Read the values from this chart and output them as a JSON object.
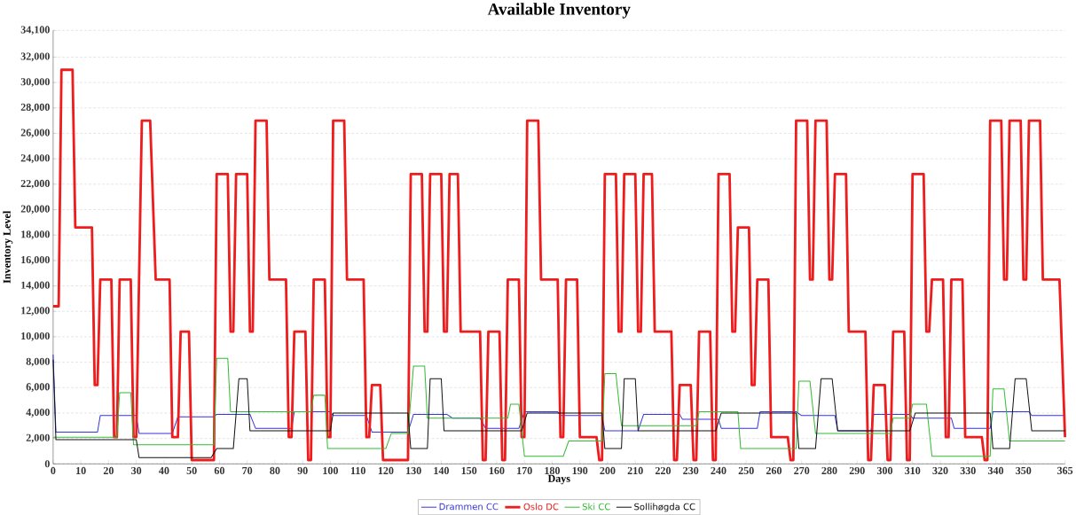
{
  "chart_data": {
    "type": "line",
    "title": "Available Inventory",
    "xlabel": "Days",
    "ylabel": "Inventory Level",
    "xlim": [
      0,
      365
    ],
    "xticks": [
      0,
      10,
      20,
      30,
      40,
      50,
      60,
      70,
      80,
      90,
      100,
      110,
      120,
      130,
      140,
      150,
      160,
      170,
      180,
      190,
      200,
      210,
      220,
      230,
      240,
      250,
      260,
      270,
      280,
      290,
      300,
      310,
      320,
      330,
      340,
      350,
      365
    ],
    "ylim": [
      0,
      34100
    ],
    "yticks": [
      0,
      {
        "value": 2000,
        "label": "2,000"
      },
      {
        "value": 4000,
        "label": "4,000"
      },
      {
        "value": 6000,
        "label": "6,000"
      },
      {
        "value": 8000,
        "label": "8,000"
      },
      {
        "value": 10000,
        "label": "10,000"
      },
      {
        "value": 12000,
        "label": "12,000"
      },
      {
        "value": 14000,
        "label": "14,000"
      },
      {
        "value": 16000,
        "label": "16,000"
      },
      {
        "value": 18000,
        "label": "18,000"
      },
      {
        "value": 20000,
        "label": "20,000"
      },
      {
        "value": 22000,
        "label": "22,000"
      },
      {
        "value": 24000,
        "label": "24,000"
      },
      {
        "value": 26000,
        "label": "26,000"
      },
      {
        "value": 28000,
        "label": "28,000"
      },
      {
        "value": 30000,
        "label": "30,000"
      },
      {
        "value": 32000,
        "label": "32,000"
      },
      {
        "value": 34100,
        "label": "34,100"
      }
    ],
    "grid": "y",
    "legend": "bottom",
    "series": [
      {
        "name": "Drammen CC",
        "color": "#3535dd",
        "x": [
          0,
          1,
          16,
          17,
          30,
          31,
          43,
          45,
          58,
          59,
          71,
          73,
          86,
          87,
          100,
          101,
          113,
          115,
          128,
          130,
          142,
          144,
          154,
          156,
          168,
          170,
          182,
          183,
          198,
          199,
          211,
          213,
          226,
          227,
          240,
          241,
          254,
          255,
          268,
          270,
          282,
          283,
          295,
          296,
          309,
          310,
          324,
          325,
          338,
          339,
          352,
          353,
          365
        ],
        "values": [
          8600,
          2500,
          2500,
          3800,
          3800,
          2400,
          2400,
          3700,
          3700,
          3900,
          3900,
          2800,
          2800,
          4100,
          4100,
          3800,
          3800,
          2500,
          2500,
          3900,
          3900,
          3600,
          3600,
          2800,
          2800,
          4100,
          4100,
          3800,
          3800,
          2600,
          2600,
          3900,
          3900,
          3500,
          3500,
          2800,
          2800,
          4100,
          4100,
          3800,
          3800,
          2600,
          2600,
          3900,
          3900,
          3600,
          3600,
          2800,
          2800,
          4100,
          4100,
          3800,
          3800
        ]
      },
      {
        "name": "Oslo DC",
        "color": "#ee1c1c",
        "x": [
          0,
          2,
          3,
          7,
          8,
          14,
          15,
          16,
          17,
          21,
          22,
          23,
          24,
          28,
          29,
          30,
          32,
          35,
          37,
          42,
          43,
          45,
          46,
          49,
          50,
          58,
          59,
          63,
          64,
          65,
          66,
          70,
          71,
          72,
          73,
          77,
          78,
          84,
          85,
          86,
          87,
          91,
          92,
          93,
          94,
          98,
          99,
          100,
          101,
          105,
          106,
          112,
          113,
          114,
          115,
          118,
          119,
          128,
          129,
          133,
          134,
          135,
          136,
          140,
          141,
          142,
          143,
          146,
          147,
          154,
          155,
          156,
          157,
          161,
          162,
          163,
          164,
          168,
          169,
          170,
          171,
          175,
          176,
          182,
          183,
          184,
          185,
          189,
          190,
          196,
          197,
          198,
          199,
          203,
          204,
          205,
          206,
          210,
          211,
          212,
          213,
          216,
          217,
          223,
          224,
          225,
          226,
          230,
          231,
          232,
          233,
          237,
          238,
          239,
          240,
          244,
          245,
          246,
          247,
          251,
          252,
          253,
          254,
          258,
          259,
          265,
          266,
          267,
          268,
          272,
          273,
          274,
          275,
          279,
          280,
          281,
          282,
          286,
          287,
          293,
          294,
          295,
          296,
          300,
          301,
          302,
          303,
          307,
          308,
          309,
          310,
          314,
          315,
          316,
          317,
          321,
          322,
          323,
          324,
          328,
          329,
          335,
          336,
          337,
          338,
          342,
          343,
          344,
          345,
          349,
          350,
          351,
          352,
          356,
          357,
          363,
          365
        ],
        "values": [
          12400,
          12400,
          31000,
          31000,
          18600,
          18600,
          6200,
          6200,
          14500,
          14500,
          2100,
          2100,
          14500,
          14500,
          2100,
          2100,
          27000,
          27000,
          14500,
          14500,
          2100,
          2100,
          10400,
          10400,
          300,
          300,
          22800,
          22800,
          10400,
          10400,
          22800,
          22800,
          10400,
          10400,
          27000,
          27000,
          14500,
          14500,
          2100,
          2100,
          10400,
          10400,
          300,
          300,
          14500,
          14500,
          2100,
          2100,
          27000,
          27000,
          14500,
          14500,
          2100,
          2100,
          6200,
          6200,
          300,
          300,
          22800,
          22800,
          10400,
          10400,
          22800,
          22800,
          10400,
          10400,
          22800,
          22800,
          10400,
          10400,
          300,
          300,
          10400,
          10400,
          300,
          300,
          14500,
          14500,
          2100,
          2100,
          27000,
          27000,
          14500,
          14500,
          2100,
          2100,
          14500,
          14500,
          2100,
          2100,
          300,
          300,
          22800,
          22800,
          10400,
          10400,
          22800,
          22800,
          10400,
          10400,
          22800,
          22800,
          10400,
          10400,
          300,
          300,
          6200,
          6200,
          300,
          300,
          10400,
          10400,
          300,
          300,
          22800,
          22800,
          10400,
          10400,
          18600,
          18600,
          6200,
          6200,
          14500,
          14500,
          2100,
          2100,
          300,
          300,
          27000,
          27000,
          14500,
          14500,
          27000,
          27000,
          14500,
          14500,
          22800,
          22800,
          10400,
          10400,
          300,
          300,
          6200,
          6200,
          300,
          300,
          10400,
          10400,
          300,
          300,
          22800,
          22800,
          10400,
          10400,
          14500,
          14500,
          2100,
          2100,
          14500,
          14500,
          2100,
          2100,
          300,
          300,
          27000,
          27000,
          14500,
          14500,
          27000,
          27000,
          14500,
          14500,
          27000,
          27000,
          14500,
          14500,
          2100
        ]
      },
      {
        "name": "Ski CC",
        "color": "#33bb33",
        "x": [
          0,
          23,
          24,
          28,
          29,
          58,
          59,
          63,
          64,
          93,
          94,
          98,
          99,
          120,
          122,
          128,
          130,
          134,
          135,
          164,
          165,
          168,
          170,
          184,
          186,
          198,
          199,
          203,
          205,
          232,
          233,
          247,
          248,
          268,
          269,
          273,
          275,
          302,
          303,
          309,
          310,
          315,
          317,
          338,
          339,
          343,
          345,
          365
        ],
        "values": [
          2100,
          2100,
          5600,
          5600,
          1500,
          1500,
          8300,
          8300,
          4100,
          4100,
          5400,
          5400,
          1200,
          1200,
          2400,
          2400,
          7700,
          7700,
          3600,
          3600,
          4700,
          4700,
          600,
          600,
          1800,
          1800,
          7100,
          7100,
          3000,
          3000,
          4100,
          4100,
          1200,
          1200,
          6500,
          6500,
          2400,
          2400,
          3600,
          3600,
          4700,
          4700,
          600,
          600,
          5900,
          5900,
          1800,
          1800
        ]
      },
      {
        "name": "Sollihøgda CC",
        "color": "#111111",
        "x": [
          0,
          1,
          30,
          31,
          57,
          59,
          65,
          67,
          70,
          71,
          100,
          101,
          128,
          129,
          135,
          136,
          140,
          141,
          169,
          171,
          198,
          199,
          205,
          206,
          210,
          211,
          239,
          241,
          268,
          269,
          275,
          277,
          281,
          283,
          309,
          311,
          338,
          339,
          345,
          347,
          351,
          353,
          365
        ],
        "values": [
          8200,
          1900,
          1900,
          500,
          500,
          1200,
          1200,
          6700,
          6700,
          2600,
          2600,
          4000,
          4000,
          1200,
          1200,
          6700,
          6700,
          2600,
          2600,
          4000,
          4000,
          1200,
          1200,
          6700,
          6700,
          2600,
          2600,
          4000,
          4000,
          1200,
          1200,
          6700,
          6700,
          2600,
          2600,
          4000,
          4000,
          1200,
          1200,
          6700,
          6700,
          2600,
          2600
        ]
      }
    ]
  }
}
